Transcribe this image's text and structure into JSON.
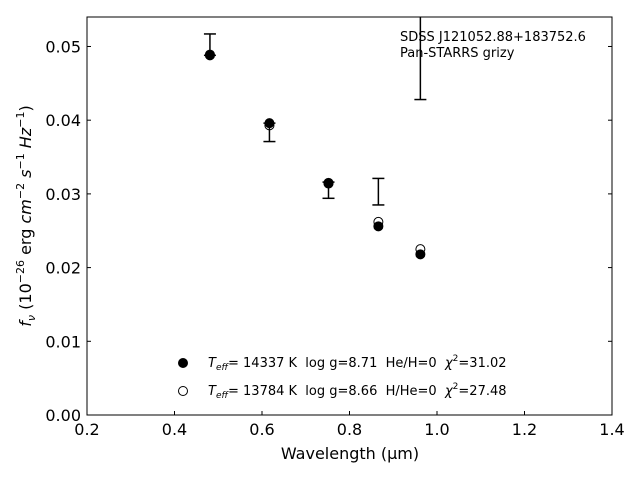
{
  "chart_data": {
    "type": "scatter",
    "xlabel": "Wavelength (μm)",
    "ylabel_parts": {
      "f": "f",
      "nu": "ν",
      "open": " (10",
      "exp": "−26",
      "mid": " erg ",
      "cm": "cm",
      "cm_exp": "−2",
      "s": " s",
      "s_exp": "−1",
      "hz": " Hz",
      "hz_exp": "−1",
      "close": ")"
    },
    "xlim": [
      0.2,
      1.4
    ],
    "ylim": [
      0.0,
      0.054
    ],
    "xticks": [
      0.2,
      0.4,
      0.6,
      0.8,
      1.0,
      1.2,
      1.4
    ],
    "xtick_labels": [
      "0.2",
      "0.4",
      "0.6",
      "0.8",
      "1.0",
      "1.2",
      "1.4"
    ],
    "yticks": [
      0.0,
      0.01,
      0.02,
      0.03,
      0.04,
      0.05
    ],
    "ytick_labels": [
      "0.00",
      "0.01",
      "0.02",
      "0.03",
      "0.04",
      "0.05"
    ],
    "annotation": [
      "SDSS J121052.88+183752.6",
      "Pan-STARRS grizy"
    ],
    "observed": {
      "x": [
        0.481,
        0.617,
        0.752,
        0.866,
        0.962
      ],
      "ylow": [
        0.0488,
        0.0371,
        0.0294,
        0.0285,
        0.0428
      ],
      "yhigh": [
        0.0517,
        0.0396,
        0.0316,
        0.0321,
        0.0545
      ]
    },
    "series": [
      {
        "marker": "filled",
        "x": [
          0.481,
          0.617,
          0.752,
          0.866,
          0.962
        ],
        "y": [
          0.0488,
          0.0396,
          0.0315,
          0.0256,
          0.0218
        ],
        "legend": {
          "t": "T",
          "t_sub": "eff",
          "t_text": "= 14337 K  log g=8.71  He/H=0  ",
          "chi": "χ",
          "chi_sup": "2",
          "chi_text": "=31.02"
        }
      },
      {
        "marker": "open",
        "x": [
          0.481,
          0.617,
          0.752,
          0.866,
          0.962
        ],
        "y": [
          0.0489,
          0.0393,
          0.0314,
          0.0262,
          0.0225
        ],
        "legend": {
          "t": "T",
          "t_sub": "eff",
          "t_text": "= 13784 K  log g=8.66  H/He=0  ",
          "chi": "χ",
          "chi_sup": "2",
          "chi_text": "=27.48"
        }
      }
    ]
  }
}
